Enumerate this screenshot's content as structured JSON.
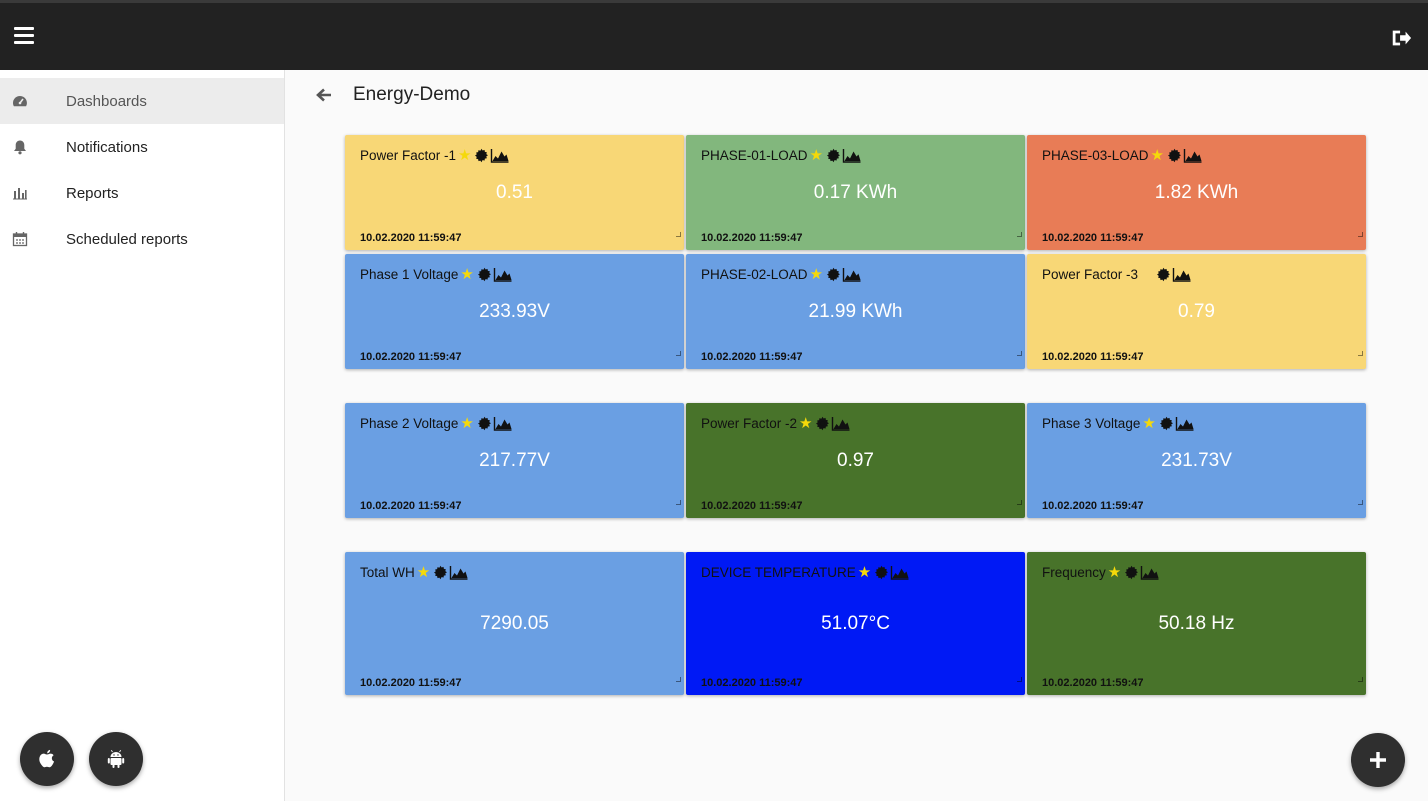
{
  "header": {
    "menu_icon": "menu-icon",
    "logout_icon": "logout-icon"
  },
  "sidebar": {
    "items": [
      {
        "label": "Dashboards",
        "icon": "dashboard-icon",
        "active": true
      },
      {
        "label": "Notifications",
        "icon": "bell-icon"
      },
      {
        "label": "Reports",
        "icon": "bar-chart-icon"
      },
      {
        "label": "Scheduled reports",
        "icon": "calendar-icon"
      }
    ],
    "apps": [
      {
        "icon": "apple-icon"
      },
      {
        "icon": "android-icon"
      }
    ]
  },
  "page": {
    "title": "Energy-Demo"
  },
  "colors": {
    "yellow": "#f8d776",
    "green": "#82b77d",
    "orange": "#e87c56",
    "blue": "#6a9fe3",
    "darkgreen": "#48732a",
    "brightblue": "#0019f5"
  },
  "widgets": [
    {
      "title": "Power Factor -1",
      "value": "0.51",
      "timestamp": "10.02.2020 11:59:47"
    },
    {
      "title": "PHASE-01-LOAD",
      "value": "0.17 KWh",
      "timestamp": "10.02.2020 11:59:47"
    },
    {
      "title": "PHASE-03-LOAD",
      "value": "1.82 KWh",
      "timestamp": "10.02.2020 11:59:47"
    },
    {
      "title": "Phase 1 Voltage",
      "value": "233.93V",
      "timestamp": "10.02.2020 11:59:47"
    },
    {
      "title": "PHASE-02-LOAD",
      "value": "21.99 KWh",
      "timestamp": "10.02.2020 11:59:47"
    },
    {
      "title": "Power Factor -3",
      "value": "0.79",
      "timestamp": "10.02.2020 11:59:47"
    },
    {
      "title": "Phase 2 Voltage",
      "value": "217.77V",
      "timestamp": "10.02.2020 11:59:47"
    },
    {
      "title": "Power Factor -2",
      "value": "0.97",
      "timestamp": "10.02.2020 11:59:47"
    },
    {
      "title": "Phase 3 Voltage",
      "value": "231.73V",
      "timestamp": "10.02.2020 11:59:47"
    },
    {
      "title": "Total WH",
      "value": "7290.05",
      "timestamp": "10.02.2020 11:59:47"
    },
    {
      "title": "DEVICE TEMPERATURE",
      "value": "51.07°C",
      "timestamp": "10.02.2020 11:59:47"
    },
    {
      "title": "Frequency",
      "value": "50.18 Hz",
      "timestamp": "10.02.2020 11:59:47"
    }
  ],
  "fab": {
    "icon": "plus-icon"
  }
}
